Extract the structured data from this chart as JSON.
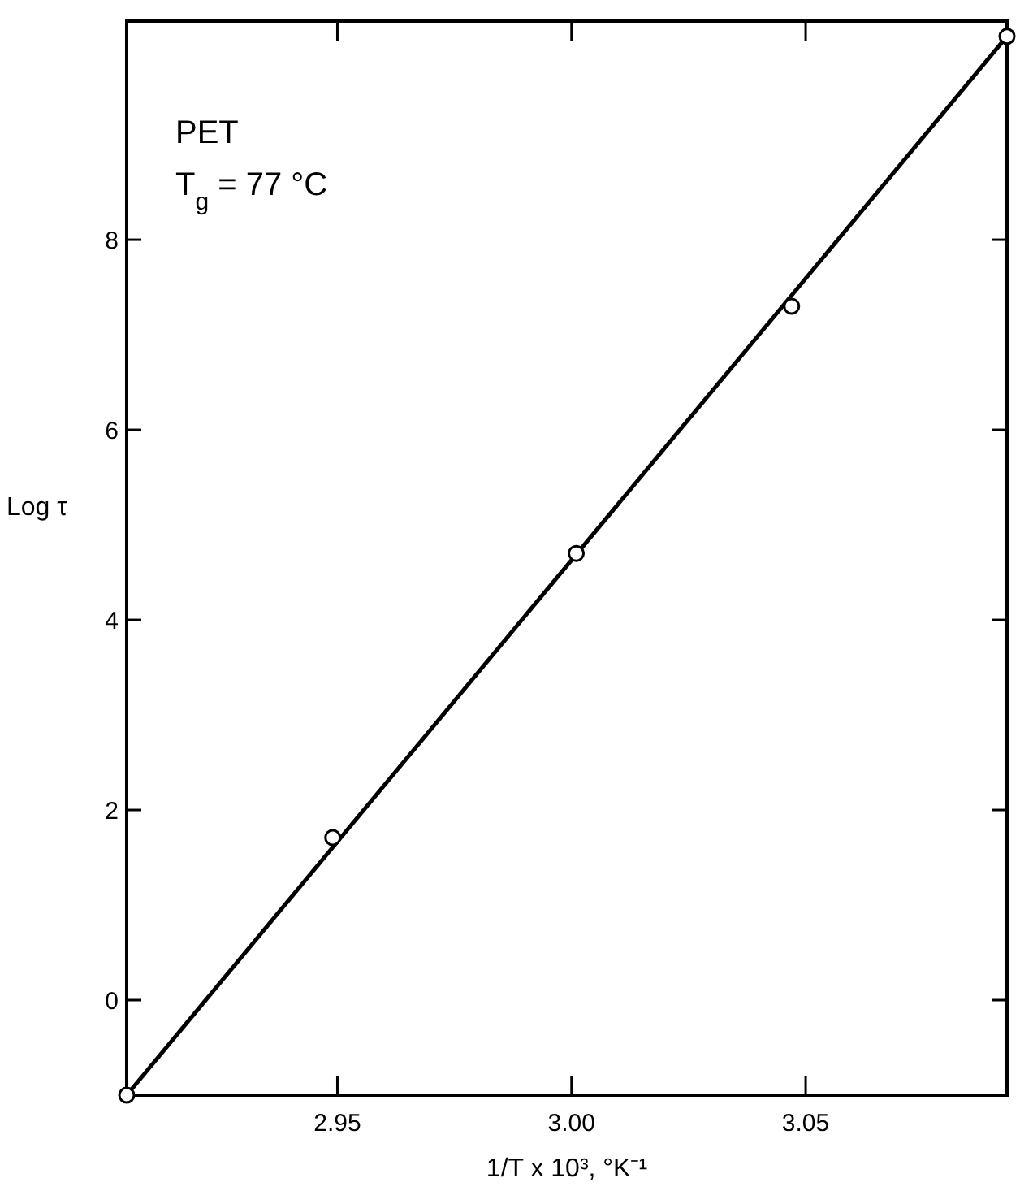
{
  "chart_data": {
    "type": "scatter",
    "xlabel": "1/T x 10³, °K⁻¹",
    "ylabel": "Log τ",
    "annotations": [
      "PET",
      "T$_{g}$ = 77 °C"
    ],
    "x": [
      2.905,
      2.949,
      3.001,
      3.047,
      3.093
    ],
    "series": [
      {
        "color": "#000000",
        "values": [
          -1.0,
          1.71,
          4.7,
          7.3,
          10.14
        ],
        "marker": "circle"
      },
      {
        "type": "line",
        "color": "#000000",
        "x": [
          2.905,
          3.093
        ],
        "values": [
          -1.0,
          10.14
        ],
        "marker": "none",
        "line_style": "solid"
      }
    ],
    "xlim": [
      2.905,
      3.093
    ],
    "xticks": [
      {
        "value": 2.95,
        "label": "2.95"
      },
      {
        "value": 3.0,
        "label": "3.00"
      },
      {
        "value": 3.05,
        "label": "3.05"
      }
    ],
    "ylim": [
      -1.0,
      10.3
    ],
    "yticks": [
      0,
      2,
      4,
      6,
      8
    ],
    "grid": false
  }
}
